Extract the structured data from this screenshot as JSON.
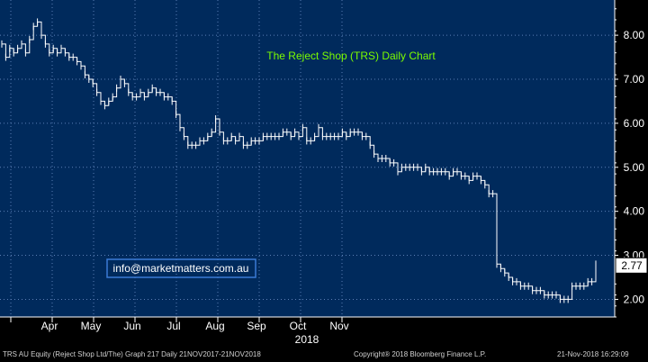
{
  "chart_data": {
    "type": "line",
    "style": "ohlc-daily-bars",
    "title": "The Reject Shop  (TRS) Daily Chart",
    "title_color": "#7CFC00",
    "annotation": "info@marketmatters.com.au",
    "annotation_color": "#ffffff",
    "annotation_border": "#3a7bd5",
    "background": "#002a5c",
    "line_color": "#ffffff",
    "grid": true,
    "grid_color": "#5a7fb5",
    "ylim": [
      1.6,
      8.8
    ],
    "y_ticks": [
      "2.00",
      "3.00",
      "4.00",
      "5.00",
      "6.00",
      "7.00",
      "8.00"
    ],
    "y_tick_values": [
      2,
      3,
      4,
      5,
      6,
      7,
      8
    ],
    "x_ticks": [
      "Apr",
      "May",
      "Jun",
      "Jul",
      "Aug",
      "Sep",
      "Oct",
      "Nov"
    ],
    "x_year_label": "2018",
    "last_price_label": "2.77",
    "last_price": 2.77,
    "series": [
      {
        "values": [
          7.8,
          7.5,
          7.7,
          7.6,
          7.7,
          7.8,
          7.6,
          7.9,
          8.2,
          8.3,
          8.0,
          7.8,
          7.6,
          7.7,
          7.6,
          7.7,
          7.6,
          7.5,
          7.5,
          7.4,
          7.3,
          7.1,
          7.0,
          6.9,
          6.7,
          6.5,
          6.4,
          6.5,
          6.6,
          6.8,
          7.0,
          6.9,
          6.7,
          6.6,
          6.6,
          6.7,
          6.6,
          6.7,
          6.8,
          6.7,
          6.7,
          6.6,
          6.6,
          6.5,
          6.2,
          5.9,
          5.7,
          5.5,
          5.5,
          5.5,
          5.6,
          5.6,
          5.7,
          5.8,
          6.1,
          5.8,
          5.6,
          5.6,
          5.7,
          5.6,
          5.7,
          5.5,
          5.5,
          5.6,
          5.6,
          5.6,
          5.7,
          5.7,
          5.7,
          5.7,
          5.7,
          5.8,
          5.8,
          5.7,
          5.8,
          5.7,
          5.9,
          5.6,
          5.6,
          5.7,
          5.9,
          5.7,
          5.7,
          5.7,
          5.7,
          5.7,
          5.8,
          5.7,
          5.8,
          5.8,
          5.8,
          5.7,
          5.7,
          5.5,
          5.3,
          5.2,
          5.2,
          5.2,
          5.1,
          5.1,
          4.9,
          5.0,
          5.0,
          5.0,
          5.0,
          5.0,
          4.9,
          5.0,
          4.9,
          4.9,
          4.9,
          4.9,
          4.9,
          4.8,
          4.9,
          4.9,
          4.8,
          4.8,
          4.7,
          4.8,
          4.8,
          4.7,
          4.6,
          4.4,
          4.4,
          2.8,
          2.7,
          2.6,
          2.5,
          2.4,
          2.4,
          2.3,
          2.3,
          2.3,
          2.2,
          2.2,
          2.2,
          2.1,
          2.1,
          2.1,
          2.1,
          2.0,
          2.0,
          2.0,
          2.3,
          2.3,
          2.3,
          2.3,
          2.4,
          2.4,
          2.8
        ]
      }
    ]
  },
  "footer": {
    "left": "TRS AU Equity (Reject Shop Ltd/The) Graph 217  Daily 21NOV2017-21NOV2018",
    "center": "Copyright® 2018 Bloomberg Finance L.P.",
    "right": "21-Nov-2018 16:29:09"
  }
}
